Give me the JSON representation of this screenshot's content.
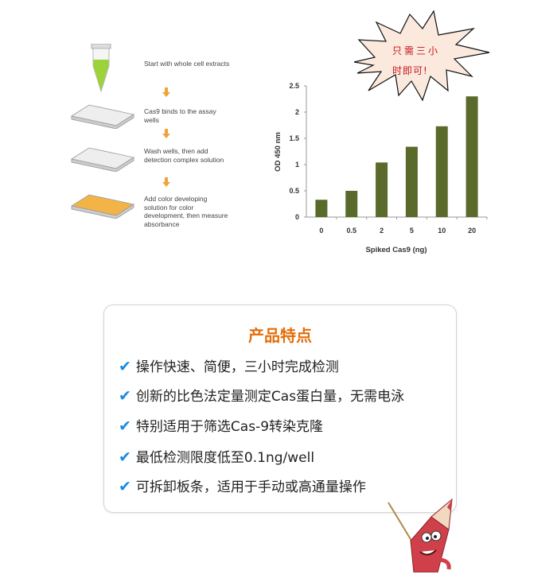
{
  "workflow": {
    "steps": [
      "Start with whole cell extracts",
      "Cas9 binds to the assay wells",
      "Wash wells, then add detection complex solution",
      "Add color developing solution for color development, then measure absorbance"
    ],
    "arrow_color": "#f0a33a"
  },
  "callout": {
    "line1": "只需三小",
    "line2": "时即可!",
    "text_color": "#c8141e",
    "fill_color": "#fbe9dd"
  },
  "chart_data": {
    "type": "bar",
    "categories": [
      "0",
      "0.5",
      "2",
      "5",
      "10",
      "20"
    ],
    "values": [
      0.33,
      0.5,
      1.04,
      1.34,
      1.73,
      2.3
    ],
    "title": "",
    "xlabel": "Spiked Cas9 (ng)",
    "ylabel": "OD 450 nm",
    "ylim": [
      0,
      2.5
    ],
    "yticks": [
      "0",
      "0.5",
      "1",
      "1.5",
      "2",
      "2.5"
    ],
    "grid": false,
    "bar_color": "#5a6a2a"
  },
  "features": {
    "title": "产品特点",
    "title_color": "#e46d0a",
    "check_icon": "check-icon",
    "check_color": "#1b8be0",
    "items": [
      "操作快速、简便，三小时完成检测",
      "创新的比色法定量测定Cas蛋白量，无需电泳",
      "特别适用于筛选Cas-9转染克隆",
      "最低检测限度低至0.1ng/well",
      "可拆卸板条，适用于手动或高通量操作"
    ]
  },
  "mascot": "pencil-mascot"
}
